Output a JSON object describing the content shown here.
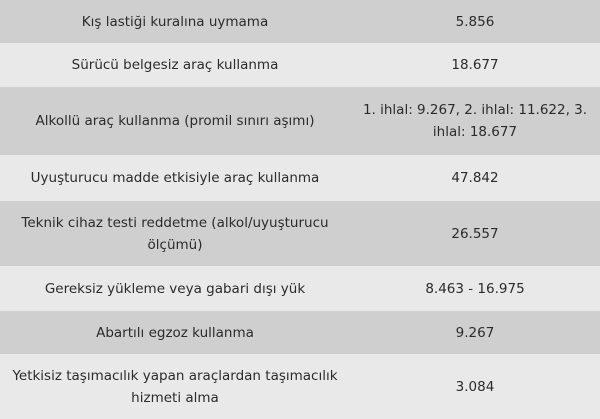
{
  "rows": [
    {
      "violation": "Kış lastiği kuralına uymama",
      "fine": "5.856"
    },
    {
      "violation": "Sürücü belgesiz araç kullanma",
      "fine": "18.677"
    },
    {
      "violation": "Alkollü araç kullanma (promil sınırı aşımı)",
      "fine": "1. ihlal: 9.267, 2. ihlal: 11.622, 3. ihlal: 18.677"
    },
    {
      "violation": "Uyuşturucu madde etkisiyle araç kullanma",
      "fine": "47.842"
    },
    {
      "violation": "Teknik cihaz testi reddetme (alkol/uyuşturucu ölçümü)",
      "fine": "26.557"
    },
    {
      "violation": "Gereksiz yükleme veya gabari dışı yük",
      "fine": "8.463 - 16.975"
    },
    {
      "violation": "Abartılı egzoz kullanma",
      "fine": "9.267"
    },
    {
      "violation": "Yetkisiz taşımacılık yapan araçlardan taşımacılık hizmeti alma",
      "fine": "3.084"
    }
  ],
  "colors": {
    "row_dark": "#cfcfcf",
    "row_light": "#e9e9e9",
    "text": "#2b2b2b"
  }
}
